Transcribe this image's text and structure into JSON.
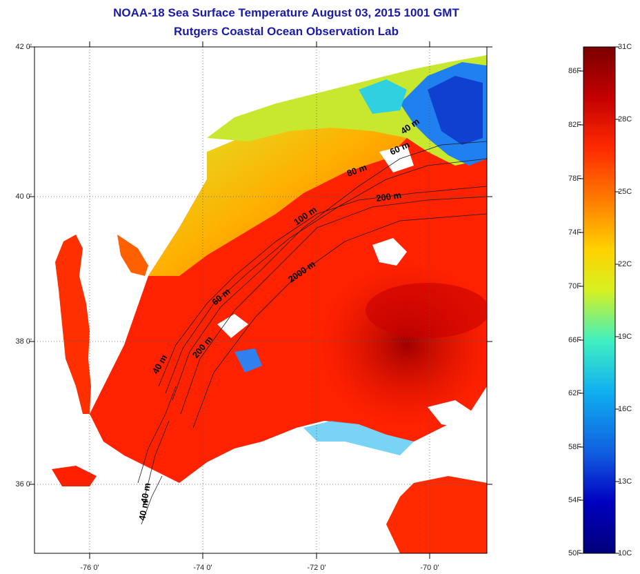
{
  "title_line1": "NOAA-18 Sea Surface Temperature August 03, 2015 1001 GMT",
  "title_line2": "Rutgers Coastal Ocean Observation Lab",
  "lon_ticks": [
    "-76 0'",
    "-74 0'",
    "-72 0'",
    "-70 0'"
  ],
  "lat_ticks": [
    "42 0'",
    "40 0'",
    "38 0'",
    "36 0'"
  ],
  "isobath_labels": [
    "40 m",
    "60 m",
    "80 m",
    "100 m",
    "200 m",
    "2000 m",
    "60 m",
    "40 m",
    "200 m",
    "40 m",
    "40 m"
  ],
  "colorbar": {
    "fahrenheit_labels": [
      "86F",
      "82F",
      "78F",
      "74F",
      "70F",
      "66F",
      "62F",
      "58F",
      "54F",
      "50F"
    ],
    "celsius_labels": [
      "31C",
      "28C",
      "25C",
      "22C",
      "19C",
      "16C",
      "13C",
      "10C"
    ],
    "min_c": 10,
    "max_c": 31,
    "colors": [
      "#7a0000",
      "#c40000",
      "#ff2a00",
      "#ff7a00",
      "#ffd200",
      "#d8f020",
      "#40f0c0",
      "#10b0f0",
      "#1060e0",
      "#0000c0",
      "#00007a"
    ]
  },
  "colors": {
    "title": "#1a1aa8",
    "land": "#ffffff",
    "cloud": "#ffffff"
  }
}
